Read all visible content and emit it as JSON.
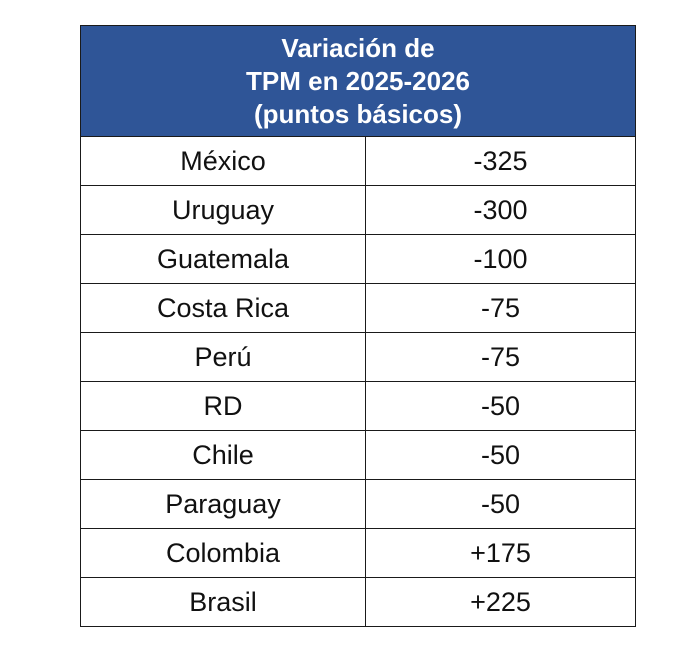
{
  "table": {
    "header_lines": [
      "Variación de",
      "TPM en 2025-2026",
      "(puntos básicos)"
    ],
    "rows": [
      {
        "country": "México",
        "value": "-325"
      },
      {
        "country": "Uruguay",
        "value": "-300"
      },
      {
        "country": "Guatemala",
        "value": "-100"
      },
      {
        "country": "Costa Rica",
        "value": "-75"
      },
      {
        "country": "Perú",
        "value": "-75"
      },
      {
        "country": "RD",
        "value": "-50"
      },
      {
        "country": "Chile",
        "value": "-50"
      },
      {
        "country": "Paraguay",
        "value": "-50"
      },
      {
        "country": "Colombia",
        "value": "+175"
      },
      {
        "country": "Brasil",
        "value": "+225"
      }
    ],
    "colors": {
      "header_bg": "#2f5597",
      "header_text": "#ffffff",
      "border": "#1a1a1a"
    }
  }
}
